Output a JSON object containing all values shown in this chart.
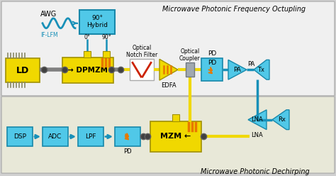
{
  "bg_outer": "#d0d0d0",
  "bg_top": "#f0f0f0",
  "bg_bot": "#e8e8d8",
  "yellow": "#f0d800",
  "yellow_edge": "#a09000",
  "cyan_box": "#50c8e8",
  "cyan_edge": "#1888aa",
  "cyan_line": "#1890b8",
  "gray_conn": "#808080",
  "orange": "#e87800",
  "red_sym": "#cc2200",
  "white": "#ffffff",
  "black": "#000000",
  "title_top": "Microwave Photonic Frequency Octupling",
  "title_bot": "Microwave Photonic Dechirping",
  "awg_label": "AWG",
  "iflm_label": "IF-LFM",
  "edfa_label": "EDFA",
  "oc_label": "Optical\nCoupler"
}
